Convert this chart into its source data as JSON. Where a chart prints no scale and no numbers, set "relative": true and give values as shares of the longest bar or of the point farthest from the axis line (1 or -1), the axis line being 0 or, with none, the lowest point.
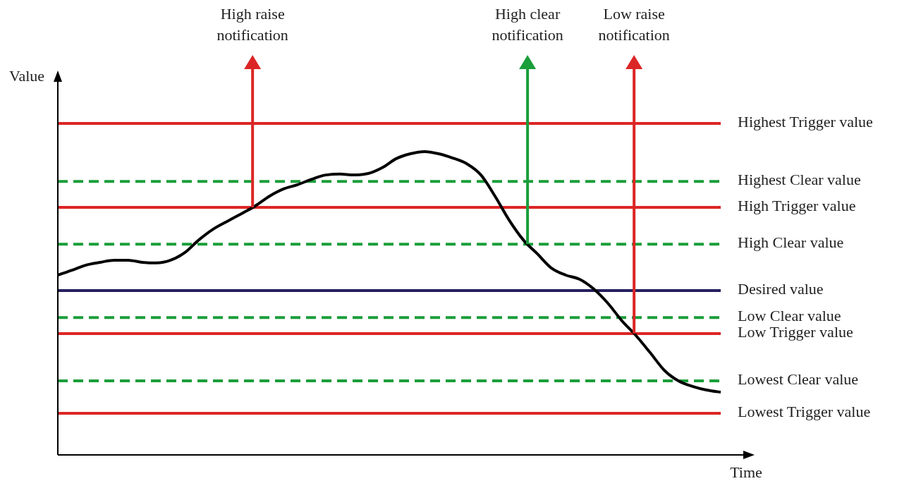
{
  "chart_data": {
    "type": "line",
    "relative": true,
    "xlabel": "Time",
    "ylabel": "Value",
    "categories": [
      null,
      null,
      null,
      null,
      null,
      null,
      null,
      null,
      null,
      null,
      null,
      null,
      null,
      null,
      null,
      null,
      null,
      null,
      null,
      null,
      null,
      null,
      null,
      null,
      null,
      null,
      null,
      null,
      null,
      null,
      null,
      null,
      null,
      null,
      null,
      null,
      null,
      null,
      null,
      null,
      null,
      null,
      null,
      null,
      null,
      null,
      null,
      null
    ],
    "series": [
      {
        "color": "#000000",
        "values": [
          0.593,
          0.609,
          0.626,
          0.635,
          0.642,
          0.642,
          0.635,
          0.633,
          0.642,
          0.667,
          0.709,
          0.744,
          0.77,
          0.795,
          0.821,
          0.853,
          0.877,
          0.891,
          0.909,
          0.923,
          0.926,
          0.923,
          0.928,
          0.947,
          0.977,
          0.993,
          1,
          0.993,
          0.979,
          0.96,
          0.923,
          0.853,
          0.774,
          0.709,
          0.663,
          0.616,
          0.593,
          0.579,
          0.547,
          0.5,
          0.442,
          0.393,
          0.337,
          0.279,
          0.244,
          0.226,
          0.214,
          0.207
        ]
      }
    ],
    "ref_lines": [
      {
        "axis": "y",
        "value": 1.093,
        "label": "Highest Trigger value",
        "color": "#dc2626",
        "line_style": "solid"
      },
      {
        "axis": "y",
        "value": 0.902,
        "label": "Highest Clear value",
        "color": "#1a9e3a",
        "line_style": "dashed"
      },
      {
        "axis": "y",
        "value": 0.816,
        "label": "High Trigger value",
        "color": "#dc2626",
        "line_style": "solid"
      },
      {
        "axis": "y",
        "value": 0.695,
        "label": "High Clear value",
        "color": "#1a9e3a",
        "line_style": "dashed"
      },
      {
        "axis": "y",
        "value": 0.542,
        "label": "Desired value",
        "color": "#25205f",
        "line_style": "solid"
      },
      {
        "axis": "y",
        "value": 0.453,
        "label": "Low Clear value",
        "color": "#1a9e3a",
        "line_style": "dashed"
      },
      {
        "axis": "y",
        "value": 0.4,
        "label": "Low Trigger value",
        "color": "#dc2626",
        "line_style": "solid"
      },
      {
        "axis": "y",
        "value": 0.244,
        "label": "Lowest Clear value",
        "color": "#1a9e3a",
        "line_style": "dashed"
      },
      {
        "axis": "y",
        "value": 0.137,
        "label": "Lowest Trigger value",
        "color": "#dc2626",
        "line_style": "solid"
      }
    ],
    "annotations": [
      "High raise notification",
      "High clear notification",
      "Low raise notification"
    ]
  }
}
